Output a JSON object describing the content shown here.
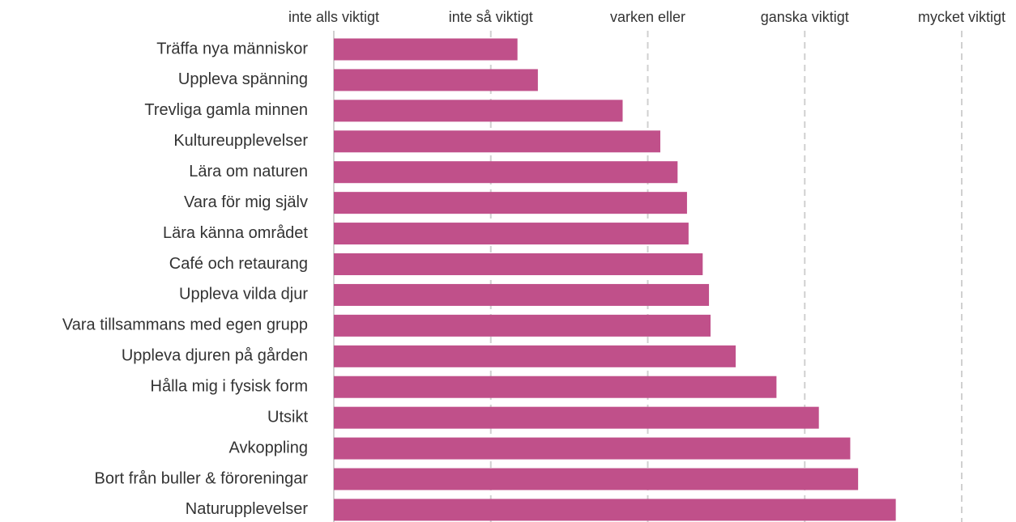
{
  "chart_data": {
    "type": "hbar",
    "categories": [
      "Träffa nya människor",
      "Uppleva spänning",
      "Trevliga gamla minnen",
      "Kultureupplevelser",
      "Lära om naturen",
      "Vara för mig själv",
      "Lära känna området",
      "Café och retaurang",
      "Uppleva vilda djur",
      "Vara tillsammans med egen grupp",
      "Uppleva djuren på gården",
      "Hålla mig i fysisk form",
      "Utsikt",
      "Avkoppling",
      "Bort från buller & föroreningar",
      "Naturupplevelser"
    ],
    "values": [
      2.17,
      2.3,
      2.84,
      3.08,
      3.19,
      3.25,
      3.26,
      3.35,
      3.39,
      3.4,
      3.56,
      3.82,
      4.09,
      4.29,
      4.34,
      4.58
    ],
    "color": "#c0508a",
    "xlim": [
      1,
      5
    ],
    "xticks": [
      {
        "value": 1,
        "label": "inte alls viktigt"
      },
      {
        "value": 2,
        "label": "inte så viktigt"
      },
      {
        "value": 3,
        "label": "varken eller"
      },
      {
        "value": 4,
        "label": "ganska viktigt"
      },
      {
        "value": 5,
        "label": "mycket viktigt"
      }
    ],
    "grid": true
  }
}
